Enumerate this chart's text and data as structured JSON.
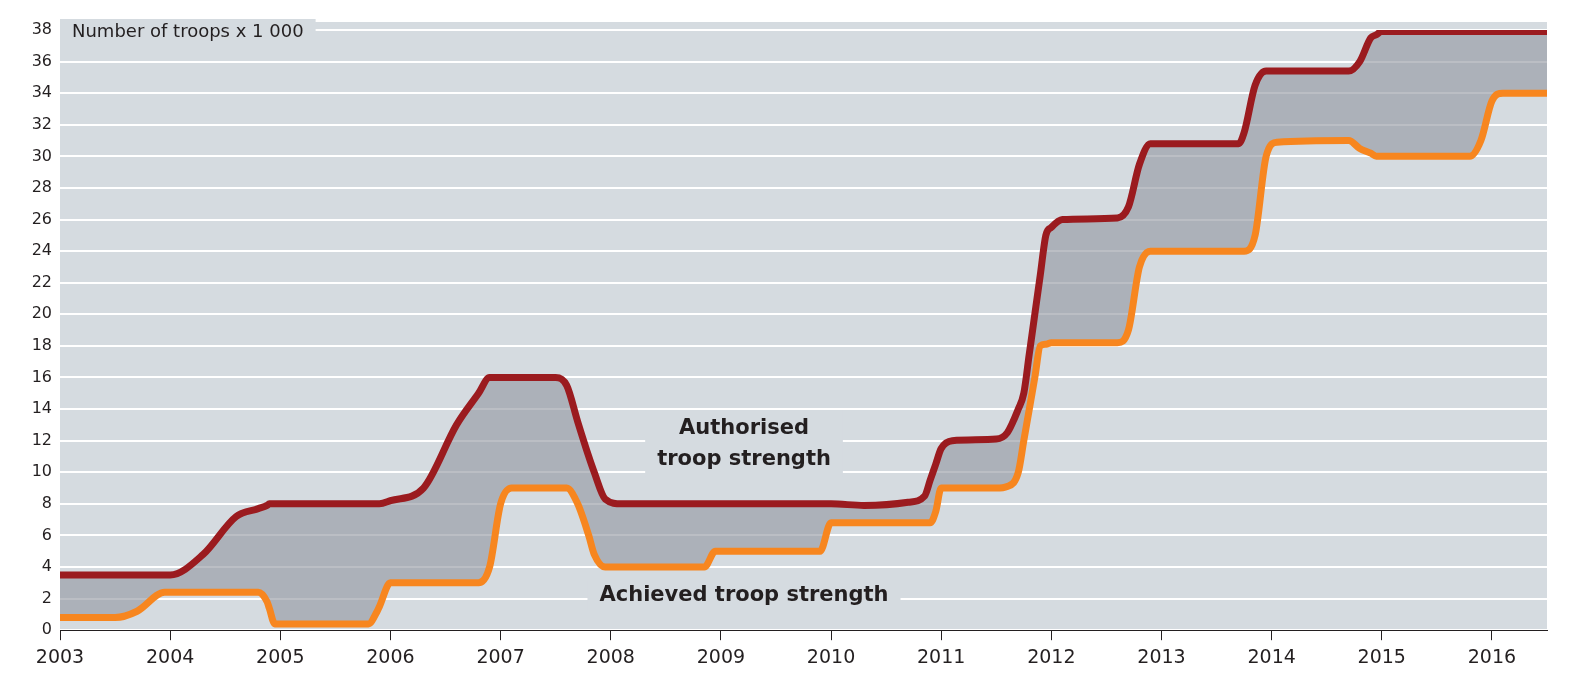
{
  "chart_data": {
    "type": "line",
    "ylabel": "Number of troops x 1 000",
    "xlim": [
      2003,
      2016.5
    ],
    "xticks": [
      2003,
      2004,
      2005,
      2006,
      2007,
      2008,
      2009,
      2010,
      2011,
      2012,
      2013,
      2014,
      2015,
      2016
    ],
    "ylim": [
      0,
      38
    ],
    "yticks": [
      0,
      2,
      4,
      6,
      8,
      10,
      12,
      14,
      16,
      18,
      20,
      22,
      24,
      26,
      28,
      30,
      32,
      34,
      36,
      38
    ],
    "grid": "y",
    "legend": false,
    "marker": "none",
    "line_style": "solid",
    "x": [
      2003.0,
      2003.5,
      2003.7,
      2003.95,
      2004.0,
      2004.3,
      2004.6,
      2004.8,
      2004.88,
      2004.9,
      2004.95,
      2005.8,
      2005.88,
      2005.9,
      2006.0,
      2006.3,
      2006.6,
      2006.8,
      2006.9,
      2007.0,
      2007.1,
      2007.5,
      2007.6,
      2007.7,
      2007.8,
      2007.85,
      2007.95,
      2008.1,
      2008.85,
      2008.95,
      2009.9,
      2010.0,
      2010.3,
      2010.7,
      2010.85,
      2010.9,
      2010.95,
      2011.0,
      2011.1,
      2011.5,
      2011.6,
      2011.7,
      2011.75,
      2011.8,
      2011.85,
      2011.9,
      2011.95,
      2012.0,
      2012.1,
      2012.6,
      2012.7,
      2012.8,
      2012.9,
      2013.7,
      2013.75,
      2013.85,
      2013.95,
      2014.05,
      2014.7,
      2014.8,
      2014.9,
      2014.95,
      2015.0,
      2015.8,
      2015.9,
      2016.0,
      2016.1,
      2016.5
    ],
    "series": [
      {
        "name": "Authorised troop strength",
        "color": "#9b1b1f",
        "values": [
          3.5,
          3.5,
          3.5,
          3.5,
          3.5,
          4.8,
          7.2,
          7.7,
          7.9,
          8,
          8,
          8,
          8,
          8,
          8.2,
          9,
          13,
          15,
          16,
          16,
          16,
          16,
          15.5,
          13.2,
          11,
          10,
          8.3,
          8,
          8,
          8,
          8,
          8,
          7.9,
          8.1,
          8.5,
          9.5,
          10.5,
          11.5,
          12,
          12.1,
          12.5,
          14,
          15,
          17.5,
          20,
          22.5,
          25,
          25.5,
          26,
          26.1,
          26.8,
          29.5,
          30.8,
          30.8,
          31.5,
          34.5,
          35.4,
          35.4,
          35.4,
          36,
          37.5,
          37.7,
          37.9,
          37.9,
          37.9,
          37.9,
          37.9,
          37.9
        ],
        "lower": [
          0.8,
          0.8,
          1.2,
          2.4,
          2.4,
          2.4,
          2.4,
          2.4,
          1.8,
          1.4,
          0.4,
          0.4,
          1.2,
          1.5,
          3,
          3,
          3,
          3,
          4,
          8,
          9,
          9,
          9,
          8,
          6,
          4.8,
          4,
          4,
          4,
          5,
          5,
          6.8,
          6.8,
          6.8,
          6.8,
          6.8,
          7.5,
          9,
          9,
          9,
          9.1,
          10,
          12,
          14,
          16,
          18,
          18.1,
          18.2,
          18.2,
          18.2,
          19,
          23,
          24,
          24,
          24,
          25,
          30,
          30.9,
          31,
          30.5,
          30.2,
          30,
          30,
          30,
          31,
          33.5,
          34,
          34
        ],
        "upper": [
          3.5,
          3.5,
          3.5,
          3.5,
          3.5,
          4.8,
          7.2,
          7.7,
          7.9,
          8,
          8,
          8,
          8,
          8,
          8.2,
          9,
          13,
          15,
          16,
          16,
          16,
          16,
          15.5,
          13.2,
          11,
          10,
          8.3,
          8,
          8,
          8,
          8,
          8,
          7.9,
          8.1,
          8.5,
          9.5,
          10.5,
          11.5,
          12,
          12.1,
          12.5,
          14,
          15,
          17.5,
          20,
          22.5,
          25,
          25.5,
          26,
          26.1,
          26.8,
          29.5,
          30.8,
          30.8,
          31.5,
          34.5,
          35.4,
          35.4,
          35.4,
          36,
          37.5,
          37.7,
          37.9,
          37.9,
          37.9,
          37.9,
          37.9,
          37.9
        ]
      },
      {
        "name": "Achieved troop strength",
        "color": "#f7861f",
        "values": [
          0.8,
          0.8,
          1.2,
          2.4,
          2.4,
          2.4,
          2.4,
          2.4,
          1.8,
          1.4,
          0.4,
          0.4,
          1.2,
          1.5,
          3,
          3,
          3,
          3,
          4,
          8,
          9,
          9,
          9,
          8,
          6,
          4.8,
          4,
          4,
          4,
          5,
          5,
          6.8,
          6.8,
          6.8,
          6.8,
          6.8,
          7.5,
          9,
          9,
          9,
          9.1,
          10,
          12,
          14,
          16,
          18,
          18.1,
          18.2,
          18.2,
          18.2,
          19,
          23,
          24,
          24,
          24,
          25,
          30,
          30.9,
          31,
          30.5,
          30.2,
          30,
          30,
          30,
          31,
          33.5,
          34,
          34
        ]
      }
    ]
  }
}
